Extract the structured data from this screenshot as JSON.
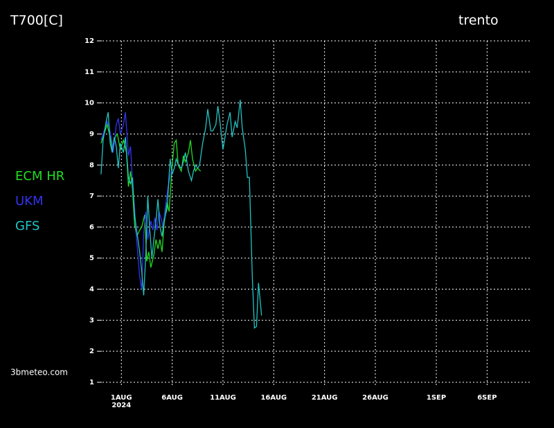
{
  "chart_data": {
    "type": "line",
    "title": "T700[C]",
    "subtitle": "trento",
    "source": "3bmeteo.com",
    "xlim": [
      -2.2,
      40.2
    ],
    "ylim": [
      1,
      12
    ],
    "xticks": [
      {
        "value": 0,
        "label": "1AUG"
      },
      {
        "value": 5,
        "label": "6AUG"
      },
      {
        "value": 10,
        "label": "11AUG"
      },
      {
        "value": 15,
        "label": "16AUG"
      },
      {
        "value": 20,
        "label": "21AUG"
      },
      {
        "value": 25,
        "label": "26AUG"
      },
      {
        "value": 31,
        "label": "1SEP"
      },
      {
        "value": 36,
        "label": "6SEP"
      }
    ],
    "x_sublabel": "2024",
    "yticks": [
      1,
      2,
      3,
      4,
      5,
      6,
      7,
      8,
      9,
      10,
      11,
      12
    ],
    "grid": true,
    "series": [
      {
        "name": "ECM HR",
        "color": "#22dd22",
        "x": [
          -2.0,
          -1.7,
          -1.4,
          -1.1,
          -0.9,
          -0.6,
          -0.4,
          -0.1,
          0.2,
          0.5,
          0.7,
          0.9,
          1.1,
          1.3,
          1.5,
          1.8,
          2.0,
          2.3,
          2.5,
          2.7,
          2.9,
          3.2,
          3.4,
          3.6,
          3.8,
          4.0,
          4.2,
          4.5,
          4.7,
          5.0,
          5.2,
          5.4,
          5.6,
          5.9,
          6.1,
          6.3,
          6.6,
          6.8,
          7.0,
          7.3,
          7.5,
          7.8
        ],
        "values": [
          8.7,
          9.0,
          9.3,
          8.9,
          8.5,
          8.9,
          9.0,
          8.5,
          8.8,
          8.4,
          7.3,
          7.8,
          7.2,
          6.1,
          5.7,
          5.9,
          6.0,
          6.4,
          4.9,
          5.2,
          4.7,
          5.1,
          5.6,
          5.3,
          5.6,
          5.2,
          6.1,
          6.8,
          6.5,
          8.0,
          8.7,
          8.8,
          8.0,
          7.8,
          8.3,
          8.1,
          8.4,
          8.8,
          8.2,
          7.8,
          7.9,
          7.8
        ]
      },
      {
        "name": "UKM",
        "color": "#3333ee",
        "x": [
          -2.0,
          -1.7,
          -1.4,
          -1.2,
          -1.0,
          -0.8,
          -0.5,
          -0.3,
          -0.1,
          0.2,
          0.4,
          0.7,
          0.9,
          1.1,
          1.3,
          1.5,
          1.8,
          2.0,
          2.2,
          2.4,
          2.6,
          2.9,
          3.1,
          3.3,
          3.5,
          3.7,
          3.9,
          4.1,
          4.3,
          4.6,
          4.9
        ],
        "values": [
          8.8,
          9.1,
          9.4,
          9.2,
          8.9,
          8.4,
          9.3,
          9.5,
          9.0,
          9.3,
          9.7,
          8.3,
          8.6,
          7.4,
          6.6,
          5.6,
          4.4,
          4.0,
          5.8,
          6.5,
          5.6,
          6.2,
          5.9,
          6.3,
          5.9,
          6.5,
          6.3,
          6.0,
          6.6,
          7.3,
          7.8
        ]
      },
      {
        "name": "GFS",
        "color": "#22c4c4",
        "x": [
          -2.0,
          -1.8,
          -1.5,
          -1.3,
          -1.1,
          -0.9,
          -0.7,
          -0.5,
          -0.3,
          -0.1,
          0.2,
          0.4,
          0.7,
          0.9,
          1.1,
          1.3,
          1.5,
          1.8,
          2.0,
          2.2,
          2.4,
          2.6,
          2.8,
          3.0,
          3.2,
          3.4,
          3.6,
          3.8,
          4.0,
          4.2,
          4.5,
          4.8,
          5.0,
          5.2,
          5.4,
          5.6,
          5.9,
          6.1,
          6.3,
          6.6,
          6.9,
          7.1,
          7.3,
          7.5,
          7.7,
          8.0,
          8.3,
          8.5,
          8.8,
          9.0,
          9.3,
          9.5,
          9.7,
          10.0,
          10.2,
          10.4,
          10.7,
          10.9,
          11.2,
          11.4,
          11.7,
          11.9,
          12.2,
          12.4,
          12.6,
          12.9,
          13.1,
          13.3,
          13.5,
          13.8
        ],
        "values": [
          7.7,
          8.8,
          9.4,
          9.7,
          8.7,
          8.4,
          8.9,
          8.6,
          7.9,
          8.7,
          8.4,
          8.9,
          7.6,
          7.4,
          7.6,
          6.4,
          5.9,
          5.2,
          4.6,
          3.8,
          5.1,
          7.0,
          5.9,
          5.0,
          5.6,
          6.2,
          6.9,
          6.0,
          5.7,
          6.2,
          6.6,
          8.2,
          7.7,
          7.9,
          8.2,
          8.0,
          7.9,
          8.1,
          8.4,
          7.8,
          7.5,
          7.8,
          8.0,
          7.9,
          8.0,
          8.7,
          9.2,
          9.8,
          9.1,
          9.1,
          9.3,
          9.9,
          9.4,
          8.5,
          8.9,
          9.3,
          9.7,
          8.9,
          9.4,
          9.2,
          10.1,
          9.2,
          8.5,
          7.6,
          7.6,
          4.3,
          2.75,
          2.8,
          4.2,
          3.15
        ]
      }
    ]
  }
}
